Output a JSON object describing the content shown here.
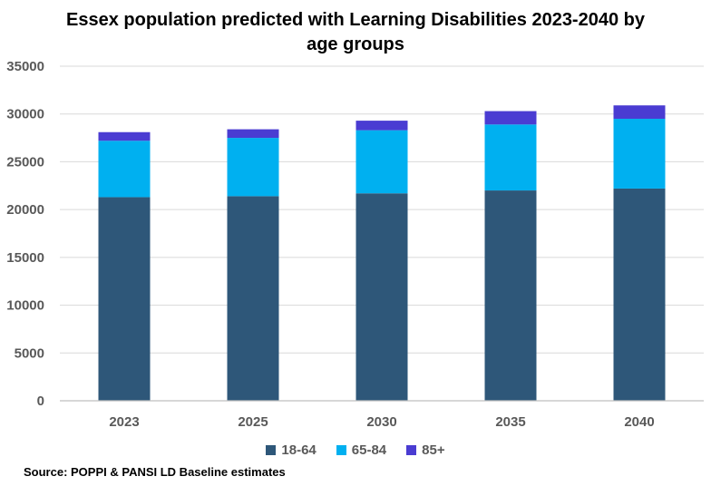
{
  "chart_data": {
    "type": "bar",
    "stacked": true,
    "title_lines": [
      "Essex population predicted with Learning Disabilities 2023-2040 by",
      "age groups"
    ],
    "categories": [
      "2023",
      "2025",
      "2030",
      "2035",
      "2040"
    ],
    "series": [
      {
        "name": "18-64",
        "color": "#2E5779",
        "values": [
          21300,
          21400,
          21700,
          22000,
          22200
        ]
      },
      {
        "name": "65-84",
        "color": "#00B0F0",
        "values": [
          5900,
          6100,
          6600,
          6900,
          7300
        ]
      },
      {
        "name": "85+",
        "color": "#4A3CD2",
        "values": [
          900,
          900,
          1000,
          1400,
          1400
        ]
      }
    ],
    "ylim": [
      0,
      35000
    ],
    "yticks": [
      0,
      5000,
      10000,
      15000,
      20000,
      25000,
      30000,
      35000
    ],
    "grid": true,
    "legend_position": "bottom"
  },
  "source": "Source: POPPI & PANSI LD Baseline estimates"
}
